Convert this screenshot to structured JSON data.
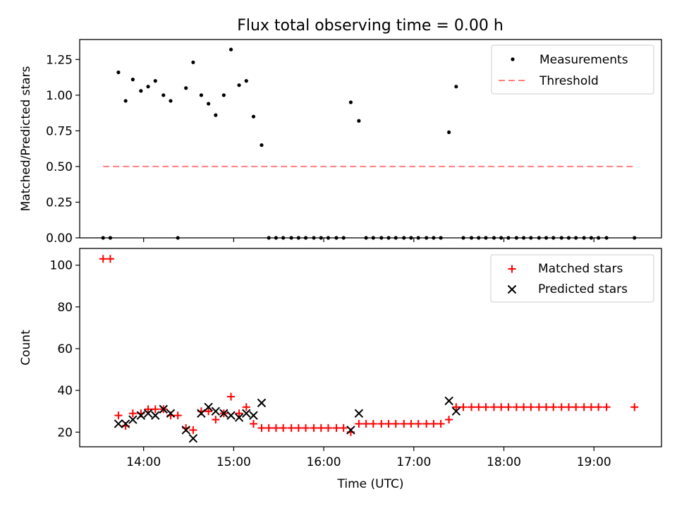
{
  "title": "Flux total observing time = 0.00 h",
  "colors": {
    "measurement": "#000000",
    "threshold": "#ff7f7f",
    "matched": "#ff0000",
    "predicted": "#000000"
  },
  "chart_data": [
    {
      "type": "scatter",
      "name": "ratio-panel",
      "ylabel": "Matched/Predicted stars",
      "xlabel": "",
      "xlim": [
        13.29,
        19.75
      ],
      "ylim": [
        0,
        1.39
      ],
      "yticks": [
        0.0,
        0.25,
        0.5,
        0.75,
        1.0,
        1.25
      ],
      "ytick_labels": [
        "0.00",
        "0.25",
        "0.50",
        "0.75",
        "1.00",
        "1.25"
      ],
      "xticks": [
        14,
        15,
        16,
        17,
        18,
        19
      ],
      "legend": {
        "placement": "top-right",
        "entries": [
          "Measurements",
          "Threshold"
        ]
      },
      "threshold": {
        "name": "Threshold",
        "y": 0.5,
        "x": [
          13.55,
          19.45
        ]
      },
      "measurements": {
        "name": "Measurements",
        "x": [
          13.55,
          13.63,
          13.72,
          13.8,
          13.88,
          13.97,
          14.05,
          14.13,
          14.22,
          14.3,
          14.38,
          14.47,
          14.55,
          14.64,
          14.72,
          14.8,
          14.89,
          14.97,
          15.06,
          15.14,
          15.22,
          15.31,
          15.39,
          15.47,
          15.55,
          15.64,
          15.72,
          15.8,
          15.89,
          15.97,
          16.05,
          16.14,
          16.22,
          16.3,
          16.39,
          16.47,
          16.55,
          16.64,
          16.72,
          16.8,
          16.89,
          16.97,
          17.05,
          17.14,
          17.22,
          17.3,
          17.39,
          17.47,
          17.55,
          17.64,
          17.72,
          17.8,
          17.89,
          17.97,
          18.05,
          18.14,
          18.22,
          18.3,
          18.39,
          18.47,
          18.55,
          18.64,
          18.72,
          18.8,
          18.89,
          18.97,
          19.05,
          19.14,
          19.45
        ],
        "y": [
          0.0,
          0.0,
          1.16,
          0.96,
          1.11,
          1.03,
          1.06,
          1.1,
          1.0,
          0.96,
          0.0,
          1.05,
          1.23,
          1.0,
          0.94,
          0.86,
          1.0,
          1.32,
          1.07,
          1.1,
          0.85,
          0.65,
          0.0,
          0.0,
          0.0,
          0.0,
          0.0,
          0.0,
          0.0,
          0.0,
          0.0,
          0.0,
          0.0,
          0.95,
          0.82,
          0.0,
          0.0,
          0.0,
          0.0,
          0.0,
          0.0,
          0.0,
          0.0,
          0.0,
          0.0,
          0.0,
          0.74,
          1.06,
          0.0,
          0.0,
          0.0,
          0.0,
          0.0,
          0.0,
          0.0,
          0.0,
          0.0,
          0.0,
          0.0,
          0.0,
          0.0,
          0.0,
          0.0,
          0.0,
          0.0,
          0.0,
          0.0,
          0.0,
          0.0
        ]
      }
    },
    {
      "type": "scatter",
      "name": "count-panel",
      "ylabel": "Count",
      "xlabel": "Time (UTC)",
      "xlim": [
        13.29,
        19.75
      ],
      "ylim": [
        13,
        108
      ],
      "yticks": [
        20,
        40,
        60,
        80,
        100
      ],
      "ytick_labels": [
        "20",
        "40",
        "60",
        "80",
        "100"
      ],
      "xticks": [
        14,
        15,
        16,
        17,
        18,
        19
      ],
      "xtick_labels": [
        "14:00",
        "15:00",
        "16:00",
        "17:00",
        "18:00",
        "19:00"
      ],
      "legend": {
        "placement": "top-right",
        "entries": [
          "Matched stars",
          "Predicted stars"
        ]
      },
      "series": [
        {
          "name": "Matched stars",
          "x": [
            13.55,
            13.63,
            13.72,
            13.8,
            13.88,
            13.97,
            14.05,
            14.13,
            14.22,
            14.3,
            14.38,
            14.47,
            14.55,
            14.64,
            14.72,
            14.8,
            14.89,
            14.97,
            15.06,
            15.14,
            15.22,
            15.31,
            15.39,
            15.47,
            15.55,
            15.64,
            15.72,
            15.8,
            15.89,
            15.97,
            16.05,
            16.14,
            16.22,
            16.3,
            16.39,
            16.47,
            16.55,
            16.64,
            16.72,
            16.8,
            16.89,
            16.97,
            17.05,
            17.14,
            17.22,
            17.3,
            17.39,
            17.47,
            17.55,
            17.64,
            17.72,
            17.8,
            17.89,
            17.97,
            18.05,
            18.14,
            18.22,
            18.3,
            18.39,
            18.47,
            18.55,
            18.64,
            18.72,
            18.8,
            18.89,
            18.97,
            19.05,
            19.14,
            19.45
          ],
          "y": [
            103,
            103,
            28,
            23,
            29,
            29,
            31,
            31,
            31,
            28,
            28,
            22,
            21,
            30,
            30,
            26,
            29,
            37,
            29,
            32,
            24,
            22,
            22,
            22,
            22,
            22,
            22,
            22,
            22,
            22,
            22,
            22,
            22,
            20,
            24,
            24,
            24,
            24,
            24,
            24,
            24,
            24,
            24,
            24,
            24,
            24,
            26,
            32,
            32,
            32,
            32,
            32,
            32,
            32,
            32,
            32,
            32,
            32,
            32,
            32,
            32,
            32,
            32,
            32,
            32,
            32,
            32,
            32,
            32
          ]
        },
        {
          "name": "Predicted stars",
          "x": [
            13.72,
            13.8,
            13.88,
            13.97,
            14.05,
            14.13,
            14.22,
            14.3,
            14.47,
            14.55,
            14.64,
            14.72,
            14.8,
            14.89,
            14.97,
            15.06,
            15.14,
            15.22,
            15.31,
            16.3,
            16.39,
            17.39,
            17.47
          ],
          "y": [
            24,
            24,
            26,
            28,
            29,
            28,
            31,
            29,
            21,
            17,
            29,
            32,
            30,
            29,
            28,
            27,
            29,
            28,
            34,
            21,
            29,
            35,
            30
          ]
        }
      ]
    }
  ]
}
